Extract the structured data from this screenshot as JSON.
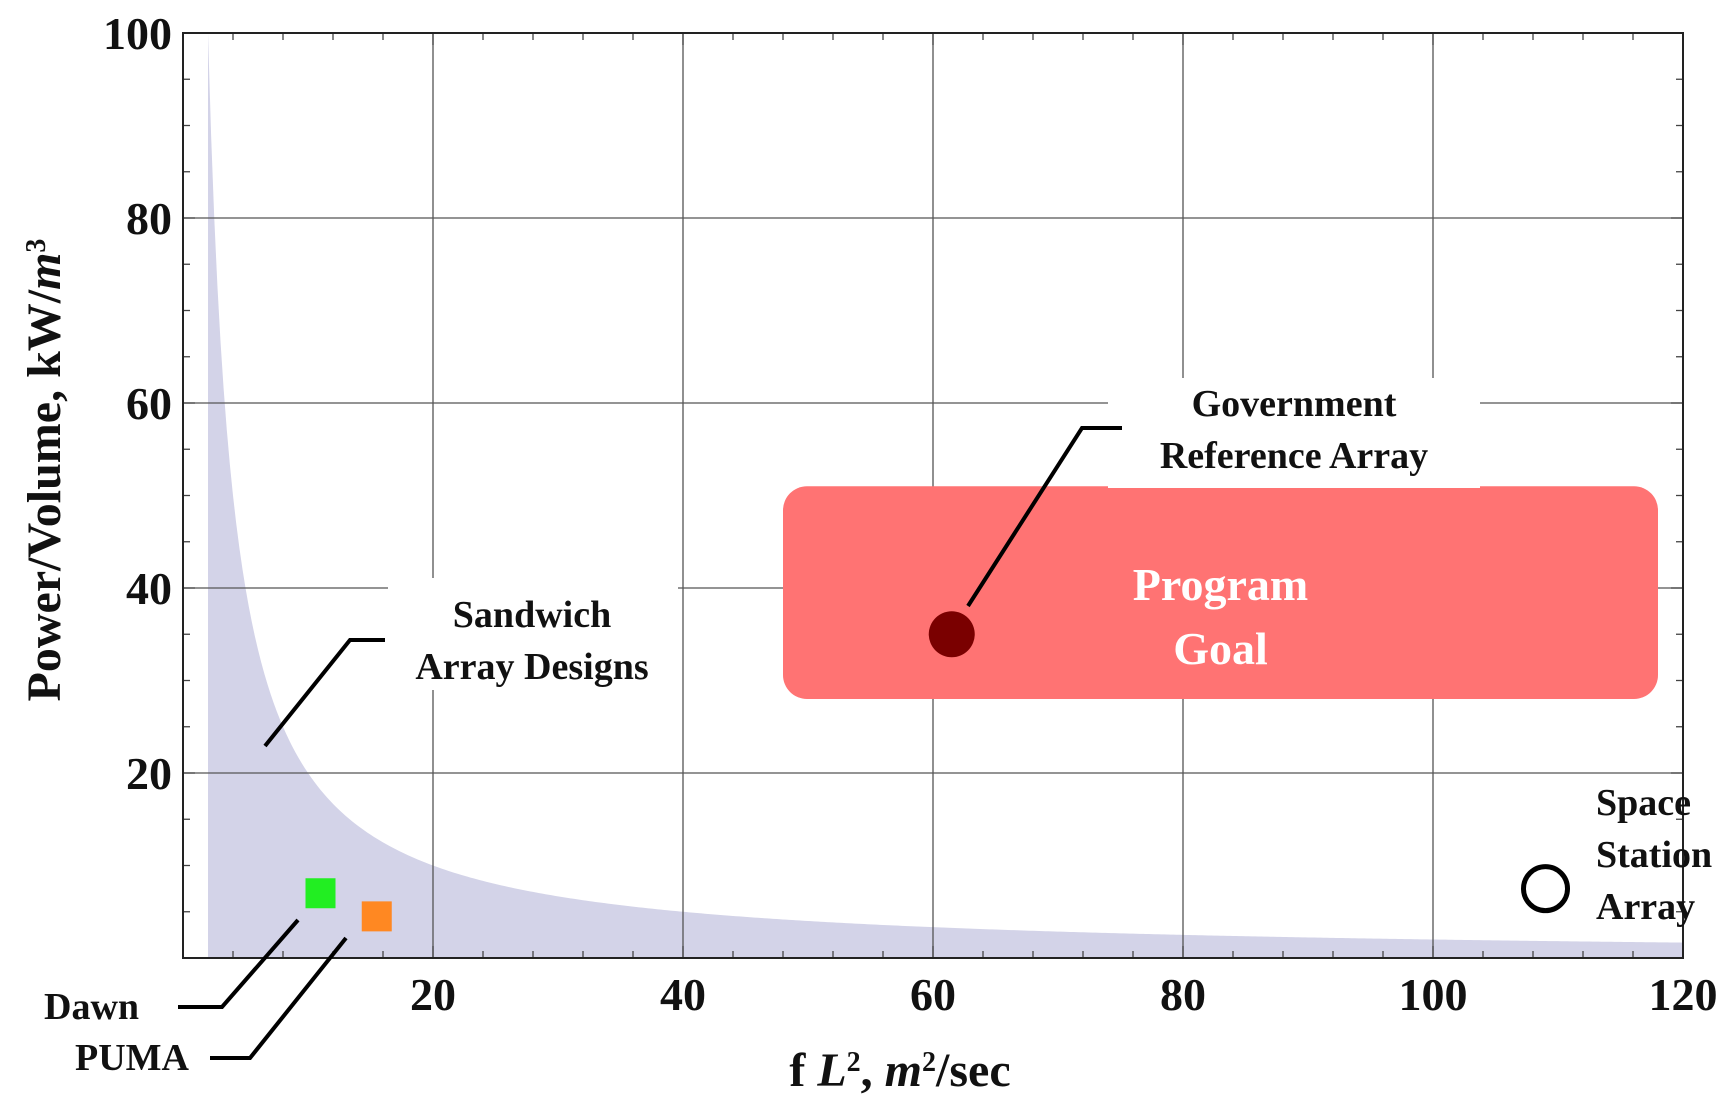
{
  "chart_data": {
    "type": "scatter",
    "xlabel_prefix": "f ",
    "xlabel_var": "L",
    "xlabel_var_exp": "2",
    "xlabel_sep": ",  ",
    "xlabel_unit": "m",
    "xlabel_unit_exp": "2",
    "xlabel_suffix": "/sec",
    "ylabel_text": "Power/Volume,  kW/",
    "ylabel_unit": "m",
    "ylabel_unit_exp": "3",
    "xlim": [
      0,
      120
    ],
    "ylim": [
      0,
      100
    ],
    "x_ticks": [
      20,
      40,
      60,
      80,
      100,
      120
    ],
    "y_ticks": [
      20,
      40,
      60,
      80,
      100
    ],
    "grid": true,
    "shaded_region": {
      "description_curve": "y = 200/x",
      "x_range": [
        0,
        120
      ],
      "color": "#d3d3e8"
    },
    "goal_region": {
      "x_range": [
        48,
        118
      ],
      "y_range": [
        28,
        51
      ],
      "color": "#ff7373",
      "label_lines": [
        "Program",
        "Goal"
      ]
    },
    "points": [
      {
        "name": "Dawn",
        "x": 11,
        "y": 7,
        "marker": "square",
        "color": "#22ee22"
      },
      {
        "name": "PUMA",
        "x": 15.5,
        "y": 4.5,
        "marker": "square",
        "color": "#ff8822"
      },
      {
        "name": "Government Reference Array",
        "x": 61.5,
        "y": 35,
        "marker": "circle",
        "color": "#7a0000"
      },
      {
        "name": "Space Station Array",
        "x": 109,
        "y": 7.5,
        "marker": "open-circle",
        "color": "#000000"
      }
    ],
    "annotations": {
      "sandwich": [
        "Sandwich",
        "Array Designs"
      ],
      "government": [
        "Government",
        "Reference Array"
      ],
      "space_station": [
        "Space",
        "Station",
        "Array"
      ],
      "dawn": "Dawn",
      "puma": "PUMA"
    }
  }
}
